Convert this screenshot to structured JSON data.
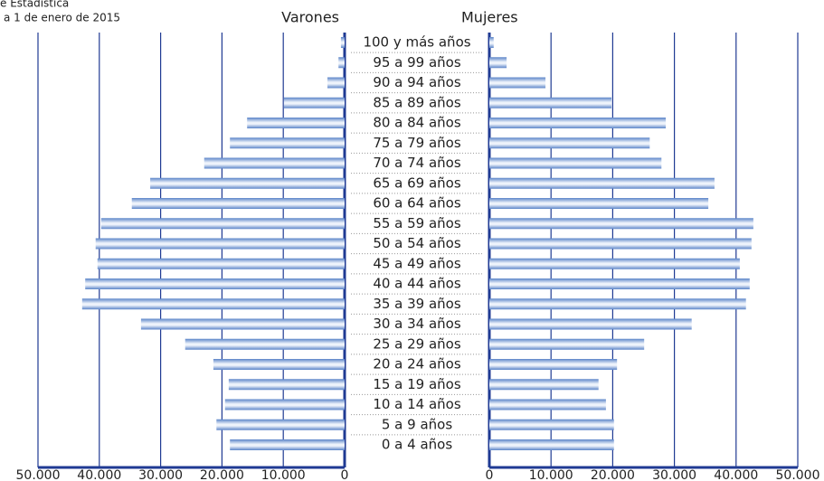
{
  "chart_data": {
    "type": "pyramid",
    "source": "e Estadística",
    "subtitle": "a 1 de enero de 2015",
    "categories": [
      "100 y más años",
      "95 a 99 años",
      "90 a 94 años",
      "85 a 89 años",
      "80 a 84 años",
      "75 a 79 años",
      "70 a 74 años",
      "65 a 69 años",
      "60 a 64 años",
      "55 a 59 años",
      "50 a 54 años",
      "45 a 49 años",
      "40 a 44 años",
      "35 a 39 años",
      "30 a 34 años",
      "25 a 29 años",
      "20 a 24 años",
      "15 a 19 años",
      "10 a 14 años",
      "5 a 9 años",
      "0 a 4 años"
    ],
    "series": [
      {
        "name": "Varones",
        "color": "#5b84c8",
        "values": [
          600,
          1000,
          2800,
          9900,
          15900,
          18700,
          22900,
          31700,
          34700,
          39700,
          40600,
          40300,
          42300,
          42800,
          33200,
          26000,
          21400,
          18900,
          19500,
          20900,
          18700
        ]
      },
      {
        "name": "Mujeres",
        "color": "#5b84c8",
        "values": [
          700,
          2800,
          9100,
          19800,
          28600,
          26000,
          27900,
          36500,
          35500,
          42800,
          42500,
          40600,
          42200,
          41600,
          32800,
          25100,
          20700,
          17700,
          18900,
          20200,
          20200
        ]
      }
    ],
    "xlim": [
      0,
      50000
    ],
    "xticks": [
      0,
      {
        "value": 10000,
        "label": "10.000"
      },
      {
        "value": 20000,
        "label": "20.000"
      },
      {
        "value": 30000,
        "label": "30.000"
      },
      {
        "value": 40000,
        "label": "40.000"
      },
      {
        "value": 50000,
        "label": "50.000"
      }
    ],
    "grid": true,
    "grid_color": "#1f3a93"
  }
}
